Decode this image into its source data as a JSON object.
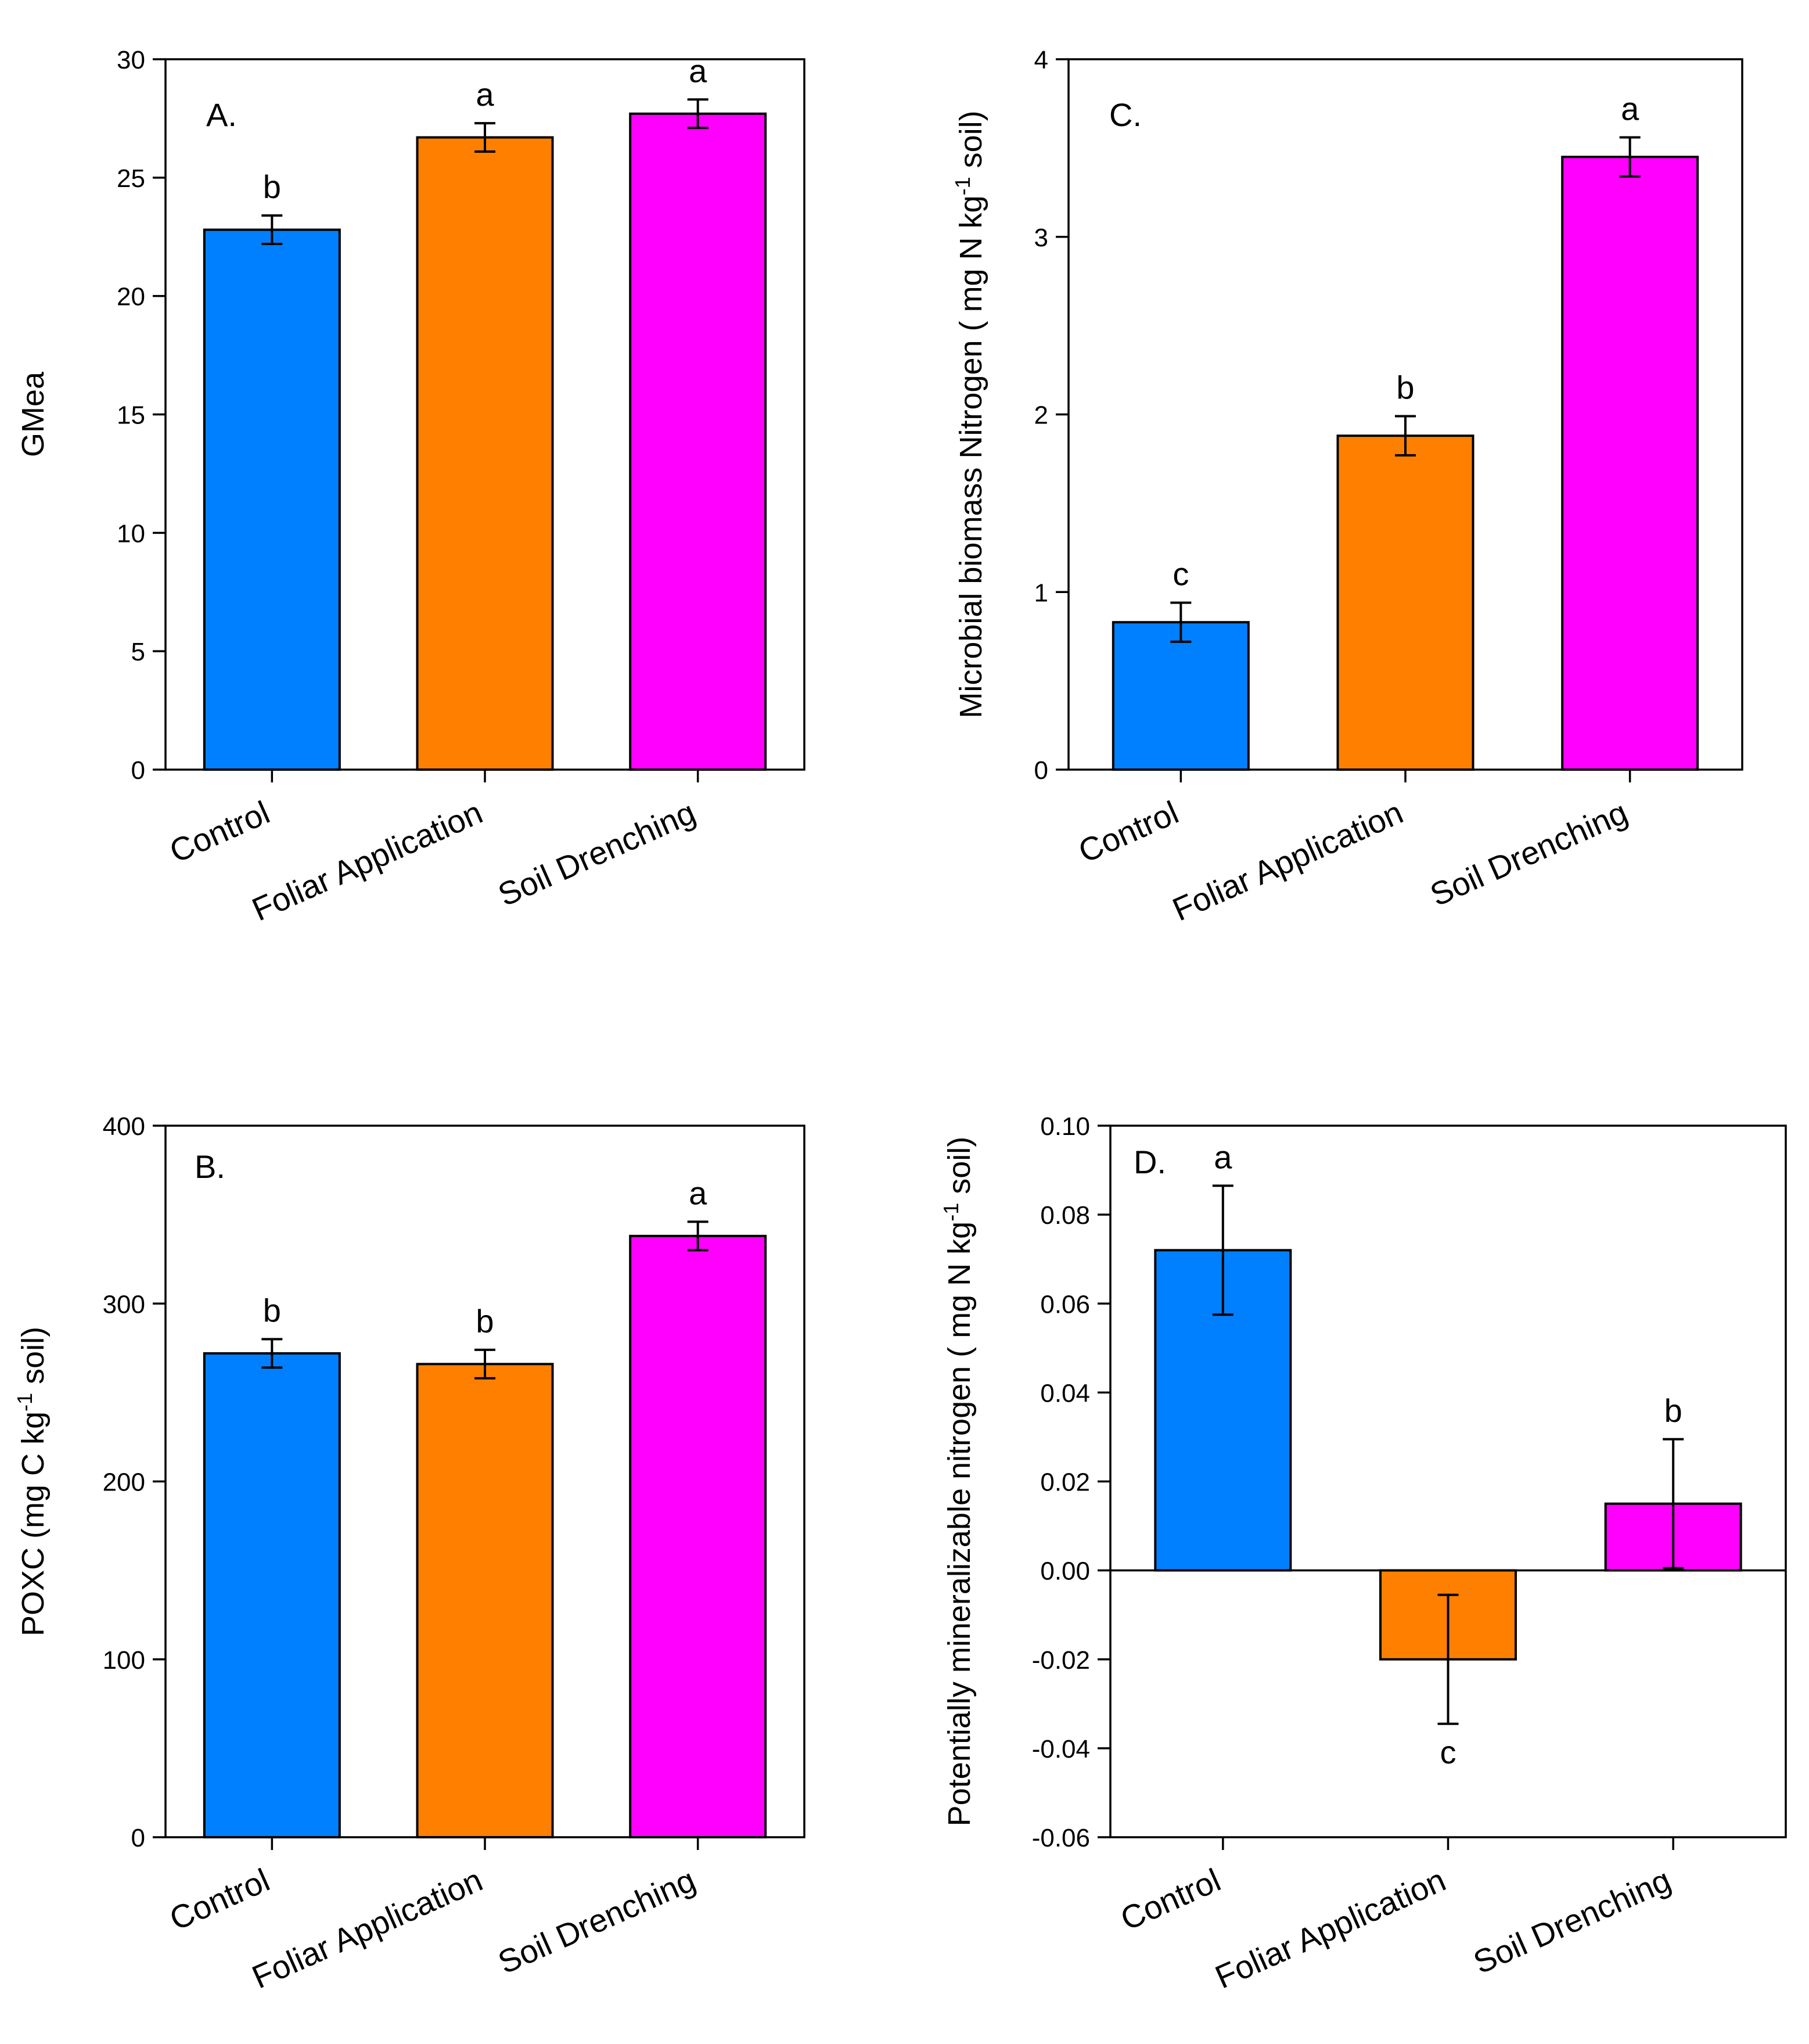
{
  "colors": {
    "control": "#0080ff",
    "foliar": "#ff8000",
    "drench": "#ff00ff"
  },
  "chart_data": [
    {
      "id": "A",
      "type": "bar",
      "panel_label": "A.",
      "categories": [
        "Control",
        "Foliar Application",
        "Soil Drenching"
      ],
      "values": [
        22.8,
        26.7,
        27.7
      ],
      "errors": [
        0.6,
        0.6,
        0.6
      ],
      "significance": [
        "b",
        "a",
        "a"
      ],
      "ylabel": "GMea",
      "ylabel_sup": "",
      "ylabel_end": "",
      "ylim": [
        0,
        30
      ],
      "yticks": [
        0,
        5,
        10,
        15,
        20,
        25,
        30
      ],
      "ytick_labels": [
        "0",
        "5",
        "10",
        "15",
        "20",
        "25",
        "30"
      ],
      "legend": "none"
    },
    {
      "id": "C",
      "type": "bar",
      "panel_label": "C.",
      "categories": [
        "Control",
        "Foliar Application",
        "Soil Drenching"
      ],
      "values": [
        0.83,
        1.88,
        3.45
      ],
      "errors": [
        0.11,
        0.11,
        0.11
      ],
      "significance": [
        "c",
        "b",
        "a"
      ],
      "ylabel": "Microbial biomass Nitrogen ( mg N kg",
      "ylabel_sup": "-1",
      "ylabel_end": " soil)",
      "ylim": [
        0,
        4
      ],
      "yticks": [
        0,
        1,
        2,
        3,
        4
      ],
      "ytick_labels": [
        "0",
        "1",
        "2",
        "3",
        "4"
      ],
      "legend": "none"
    },
    {
      "id": "B",
      "type": "bar",
      "panel_label": "B.",
      "categories": [
        "Control",
        "Foliar Application",
        "Soil Drenching"
      ],
      "values": [
        272,
        266,
        338
      ],
      "errors": [
        8,
        8,
        8
      ],
      "significance": [
        "b",
        "b",
        "a"
      ],
      "ylabel": "POXC (mg C kg",
      "ylabel_sup": "-1",
      "ylabel_end": " soil)",
      "ylim": [
        0,
        400
      ],
      "yticks": [
        0,
        100,
        200,
        300,
        400
      ],
      "ytick_labels": [
        "0",
        "100",
        "200",
        "300",
        "400"
      ],
      "legend": "none"
    },
    {
      "id": "D",
      "type": "bar",
      "panel_label": "D.",
      "categories": [
        "Control",
        "Foliar Application",
        "Soil Drenching"
      ],
      "values": [
        0.072,
        -0.02,
        0.015
      ],
      "errors": [
        0.0145,
        0.0145,
        0.0145
      ],
      "significance": [
        "a",
        "c",
        "b"
      ],
      "ylabel": "Potentially mineralizable nitrogen ( mg N kg",
      "ylabel_sup": "-1",
      "ylabel_end": " soil)",
      "ylim": [
        -0.06,
        0.1
      ],
      "yticks": [
        -0.06,
        -0.04,
        -0.02,
        0.0,
        0.02,
        0.04,
        0.06,
        0.08,
        0.1
      ],
      "ytick_labels": [
        "-0.06",
        "-0.04",
        "-0.02",
        "0.00",
        "0.02",
        "0.04",
        "0.06",
        "0.08",
        "0.10"
      ],
      "zero_line": true,
      "legend": "none"
    }
  ]
}
